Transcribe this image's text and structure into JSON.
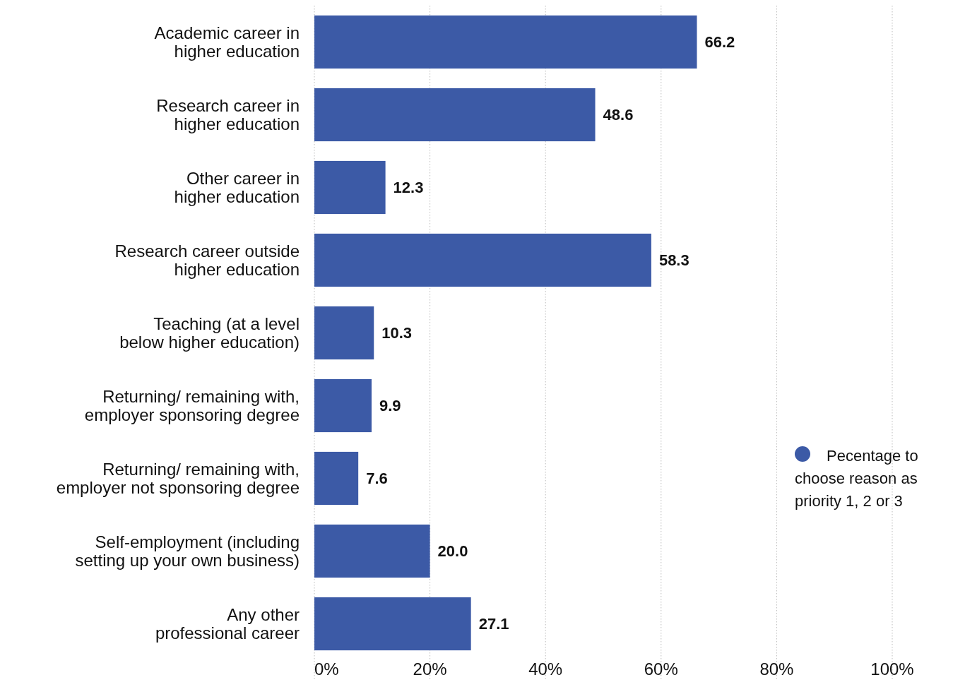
{
  "chart_data": {
    "type": "bar",
    "orientation": "horizontal",
    "categories": [
      "Academic career in higher education",
      "Research career in higher education",
      "Other career in higher education",
      "Research career outside higher education",
      "Teaching (at a level below higher education)",
      "Returning/ remaining with, employer sponsoring degree",
      "Returning/ remaining with, employer not sponsoring degree",
      "Self-employment (including setting up your own business)",
      "Any other professional career"
    ],
    "series": [
      {
        "name": "Pecentage to choose reason as priority 1, 2 or 3",
        "color": "#3c5aa6",
        "values": [
          66.2,
          48.6,
          12.3,
          58.3,
          10.3,
          9.9,
          7.6,
          20.0,
          27.1
        ]
      }
    ],
    "value_labels": [
      "66.2",
      "48.6",
      "12.3",
      "58.3",
      "10.3",
      "9.9",
      "7.6",
      "20.0",
      "27.1"
    ],
    "xlim": [
      0,
      100
    ],
    "xticks": [
      {
        "value": 0,
        "label": "0%"
      },
      {
        "value": 20,
        "label": "20%"
      },
      {
        "value": 40,
        "label": "40%"
      },
      {
        "value": 60,
        "label": "60%"
      },
      {
        "value": 80,
        "label": "80%"
      },
      {
        "value": 100,
        "label": "100%"
      }
    ],
    "grid": "x",
    "legend": "right"
  }
}
